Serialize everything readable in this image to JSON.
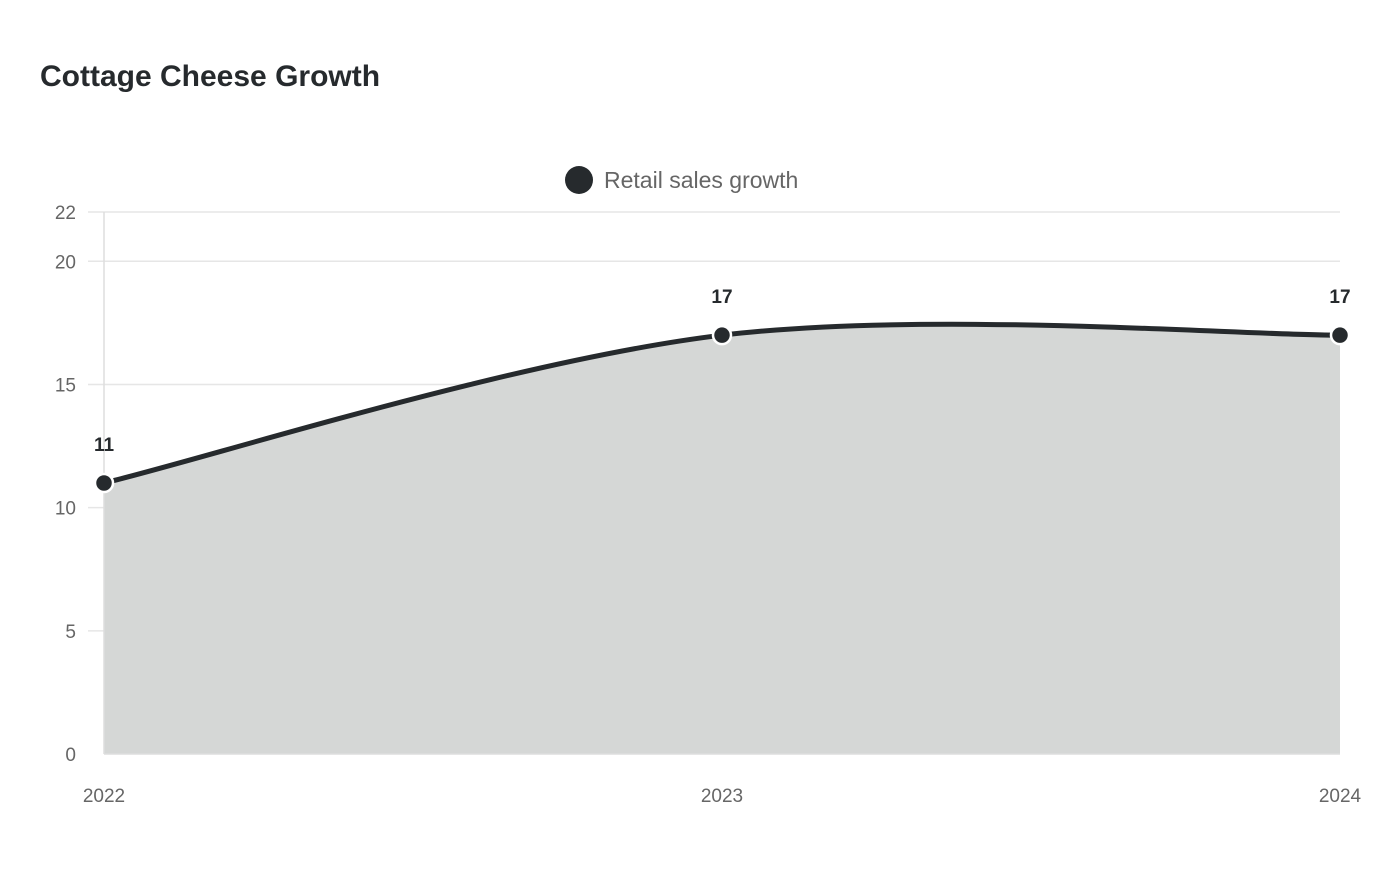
{
  "chart_data": {
    "type": "area",
    "title": "Cottage Cheese Growth",
    "xlabel": "",
    "ylabel": "",
    "categories": [
      "2022",
      "2023",
      "2024"
    ],
    "series": [
      {
        "name": "Retail sales growth",
        "values": [
          11,
          17,
          17
        ],
        "data_labels": [
          "11",
          "17",
          "17"
        ]
      }
    ],
    "ylim": [
      0,
      22
    ],
    "yticks": [
      0,
      5,
      10,
      15,
      20,
      22
    ],
    "ytick_labels": [
      "0",
      "5",
      "10",
      "15",
      "20",
      "22"
    ],
    "grid": true,
    "legend_position": "top-center",
    "smooth": true,
    "colors": {
      "line": "#262a2d",
      "fill": "#d5d7d6",
      "grid": "#e6e6e6",
      "axis": "#dddddd",
      "text": "#666666",
      "title": "#262a2d"
    }
  }
}
